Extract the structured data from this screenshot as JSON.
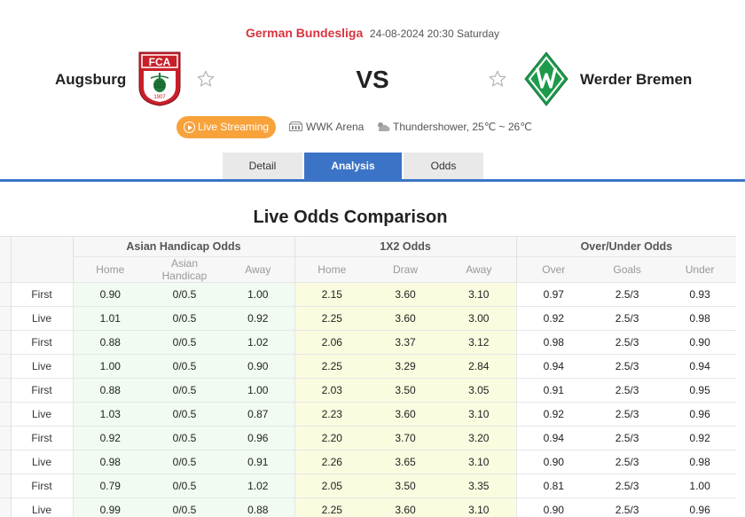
{
  "match": {
    "league": "German Bundesliga",
    "datetime": "24-08-2024 20:30 Saturday",
    "home_team": "Augsburg",
    "away_team": "Werder Bremen",
    "vs": "VS",
    "home_logo_text": "FCA",
    "home_logo_year": "1907",
    "live_label": "Live Streaming",
    "venue": "WWK Arena",
    "weather": "Thundershower, 25℃ ~ 26℃"
  },
  "tabs": [
    {
      "label": "Detail",
      "active": false
    },
    {
      "label": "Analysis",
      "active": true
    },
    {
      "label": "Odds",
      "active": false
    }
  ],
  "section_title": "Live Odds Comparison",
  "table": {
    "groups": [
      "Asian Handicap Odds",
      "1X2 Odds",
      "Over/Under Odds"
    ],
    "sub_headers": [
      "Home",
      "Asian Handicap",
      "Away",
      "Home",
      "Draw",
      "Away",
      "Over",
      "Goals",
      "Under"
    ],
    "rows": [
      {
        "type": "First",
        "cells": [
          "0.90",
          "0/0.5",
          "1.00",
          "2.15",
          "3.60",
          "3.10",
          "0.97",
          "2.5/3",
          "0.93"
        ]
      },
      {
        "type": "Live",
        "cells": [
          "1.01",
          "0/0.5",
          "0.92",
          "2.25",
          "3.60",
          "3.00",
          "0.92",
          "2.5/3",
          "0.98"
        ]
      },
      {
        "type": "First",
        "cells": [
          "0.88",
          "0/0.5",
          "1.02",
          "2.06",
          "3.37",
          "3.12",
          "0.98",
          "2.5/3",
          "0.90"
        ]
      },
      {
        "type": "Live",
        "cells": [
          "1.00",
          "0/0.5",
          "0.90",
          "2.25",
          "3.29",
          "2.84",
          "0.94",
          "2.5/3",
          "0.94"
        ]
      },
      {
        "type": "First",
        "cells": [
          "0.88",
          "0/0.5",
          "1.00",
          "2.03",
          "3.50",
          "3.05",
          "0.91",
          "2.5/3",
          "0.95"
        ]
      },
      {
        "type": "Live",
        "cells": [
          "1.03",
          "0/0.5",
          "0.87",
          "2.23",
          "3.60",
          "3.10",
          "0.92",
          "2.5/3",
          "0.96"
        ]
      },
      {
        "type": "First",
        "cells": [
          "0.92",
          "0/0.5",
          "0.96",
          "2.20",
          "3.70",
          "3.20",
          "0.94",
          "2.5/3",
          "0.92"
        ]
      },
      {
        "type": "Live",
        "cells": [
          "0.98",
          "0/0.5",
          "0.91",
          "2.26",
          "3.65",
          "3.10",
          "0.90",
          "2.5/3",
          "0.98"
        ]
      },
      {
        "type": "First",
        "cells": [
          "0.79",
          "0/0.5",
          "1.02",
          "2.05",
          "3.50",
          "3.35",
          "0.81",
          "2.5/3",
          "1.00"
        ]
      },
      {
        "type": "Live",
        "cells": [
          "0.99",
          "0/0.5",
          "0.88",
          "2.25",
          "3.60",
          "3.10",
          "0.90",
          "2.5/3",
          "0.96"
        ]
      }
    ]
  },
  "colors": {
    "league_red": "#d8343f",
    "accent_blue": "#3b74c6",
    "live_orange": "#f7a23b",
    "augsburg_red": "#c8202b",
    "augsburg_green": "#1f7a3a",
    "werder_green": "#1d9a4a"
  },
  "icons": {
    "home_logo": "augsburg-crest-icon",
    "away_logo": "werder-bremen-diamond-icon",
    "favorite": "star-outline-icon",
    "live": "play-circle-icon",
    "venue": "stadium-icon",
    "weather": "cloud-sun-icon"
  }
}
